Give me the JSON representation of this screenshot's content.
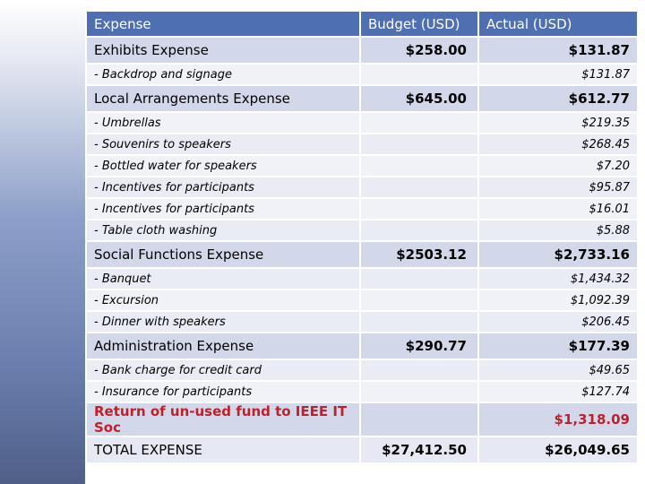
{
  "header": {
    "expense": "Expense",
    "budget": "Budget (USD)",
    "actual": "Actual (USD)"
  },
  "rows": [
    {
      "type": "cat",
      "label": "Exhibits Expense",
      "budget": "$258.00",
      "actual": "$131.87"
    },
    {
      "type": "item",
      "label": "- Backdrop and signage",
      "budget": "",
      "actual": "$131.87"
    },
    {
      "type": "cat",
      "label": "Local Arrangements Expense",
      "budget": "$645.00",
      "actual": "$612.77"
    },
    {
      "type": "item",
      "label": "- Umbrellas",
      "budget": "",
      "actual": "$219.35"
    },
    {
      "type": "item",
      "label": "- Souvenirs to speakers",
      "budget": "",
      "actual": "$268.45"
    },
    {
      "type": "item",
      "label": "- Bottled water for speakers",
      "budget": "",
      "actual": "$7.20"
    },
    {
      "type": "item",
      "label": "- Incentives for participants",
      "budget": "",
      "actual": "$95.87"
    },
    {
      "type": "item",
      "label": "- Incentives for participants",
      "budget": "",
      "actual": "$16.01"
    },
    {
      "type": "item",
      "label": "- Table cloth washing",
      "budget": "",
      "actual": "$5.88"
    },
    {
      "type": "cat",
      "label": "Social Functions Expense",
      "budget": "$2503.12",
      "actual": "$2,733.16"
    },
    {
      "type": "item",
      "label": "- Banquet",
      "budget": "",
      "actual": "$1,434.32"
    },
    {
      "type": "item",
      "label": "- Excursion",
      "budget": "",
      "actual": "$1,092.39"
    },
    {
      "type": "item",
      "label": "- Dinner with speakers",
      "budget": "",
      "actual": "$206.45"
    },
    {
      "type": "cat",
      "label": "Administration Expense",
      "budget": "$290.77",
      "actual": "$177.39"
    },
    {
      "type": "item",
      "label": "- Bank charge for credit card",
      "budget": "",
      "actual": "$49.65"
    },
    {
      "type": "item",
      "label": "- Insurance for participants",
      "budget": "",
      "actual": "$127.74"
    },
    {
      "type": "ret",
      "label": "Return of un-used fund to IEEE IT Soc",
      "budget": "",
      "actual": "$1,318.09"
    },
    {
      "type": "total",
      "label": "TOTAL EXPENSE",
      "budget": "$27,412.50",
      "actual": "$26,049.65"
    }
  ]
}
